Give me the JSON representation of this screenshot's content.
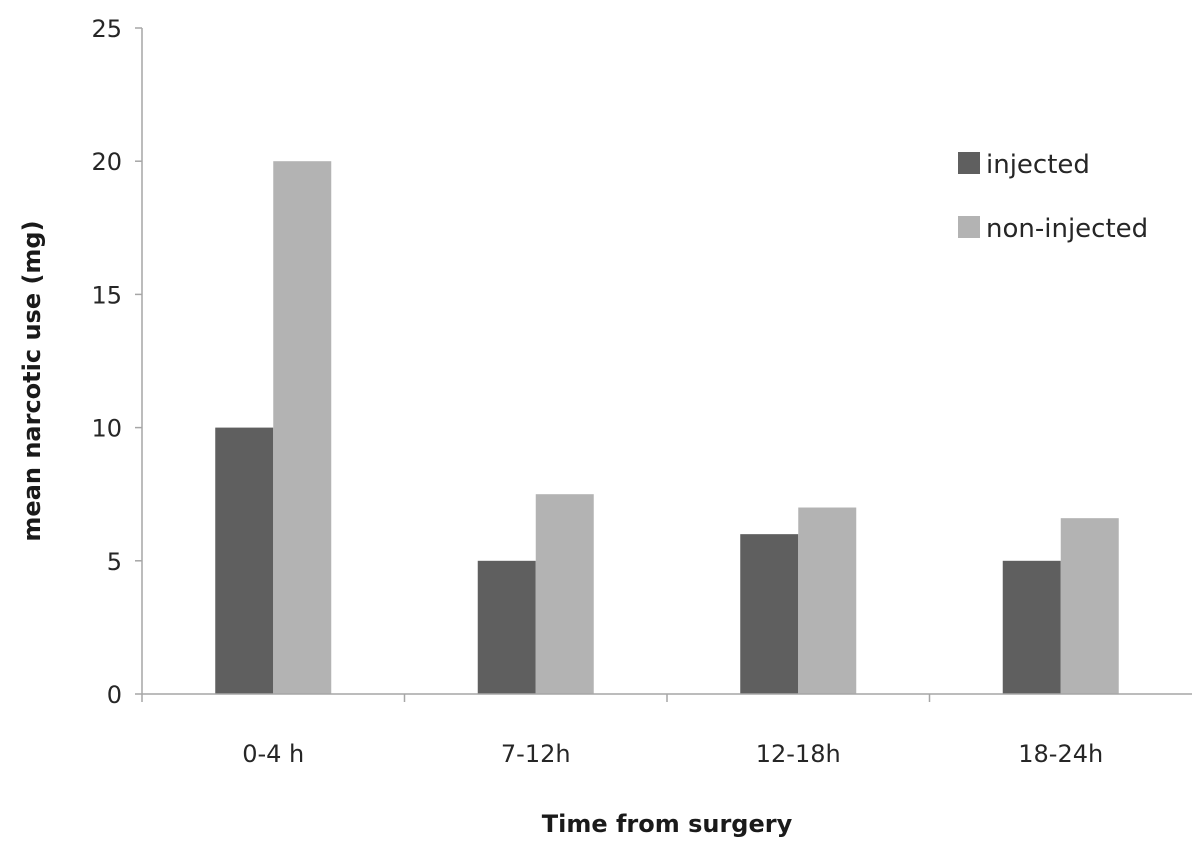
{
  "chart_data": {
    "type": "bar",
    "title": "",
    "xlabel": "Time from surgery",
    "ylabel": "mean narcotic use (mg)",
    "categories": [
      "0-4 h",
      "7-12h",
      "12-18h",
      "18-24h"
    ],
    "series": [
      {
        "name": "injected",
        "values": [
          10,
          5,
          6,
          5
        ],
        "color": "#5f5f5f"
      },
      {
        "name": "non-injected",
        "values": [
          20,
          7.5,
          7,
          6.6
        ],
        "color": "#b3b3b3"
      }
    ],
    "ylim": [
      0,
      25
    ],
    "yticks": [
      0,
      5,
      10,
      15,
      20,
      25
    ],
    "ytick_labels": [
      "0",
      "5",
      "10",
      "15",
      "20",
      "25"
    ],
    "grid": false,
    "legend": "top-right",
    "axis_color": "#a6a6a6"
  }
}
